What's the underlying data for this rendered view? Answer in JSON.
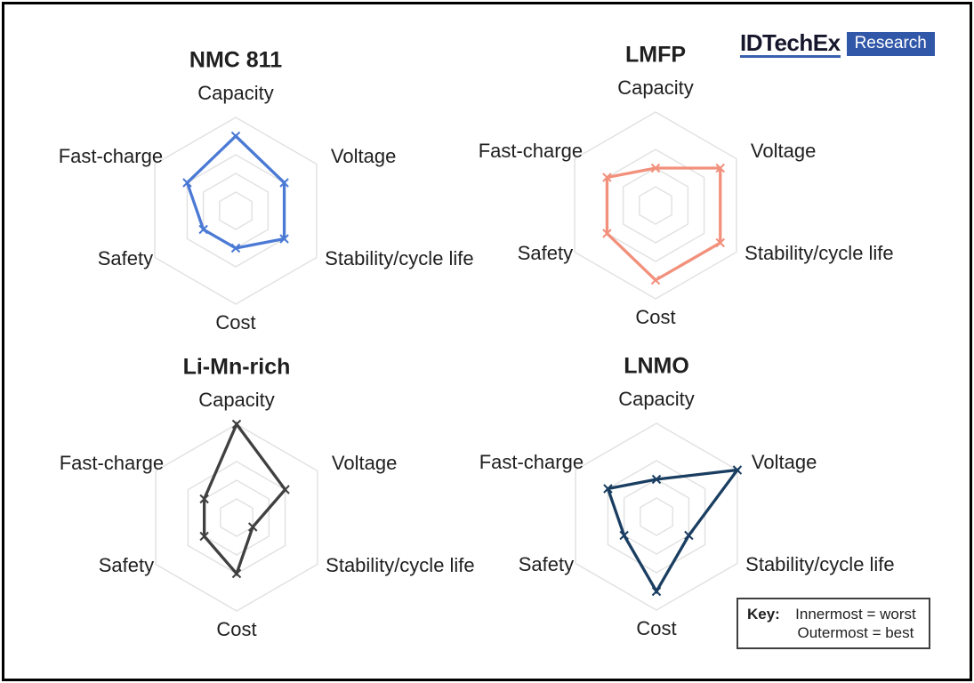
{
  "page": {
    "background": "#FFFFFF",
    "border_color": "#000000"
  },
  "logo": {
    "brand": "IDTechEx",
    "product": "Research",
    "brand_color": "#16162C",
    "underline_color": "#3A5FAE",
    "badge_bg": "#3157A8",
    "badge_text_color": "#FFFFFF"
  },
  "key": {
    "label": "Key:",
    "line1": "Innermost = worst",
    "line2": "Outermost = best"
  },
  "chart_data": [
    {
      "type": "radar",
      "title": "NMC 811",
      "axes": [
        "Capacity",
        "Voltage",
        "Stability/cycle life",
        "Cost",
        "Safety",
        "Fast-charge"
      ],
      "values": [
        4,
        3,
        3,
        2,
        2,
        3
      ],
      "color": "#4B7AD5",
      "grid_color": "#E2E2E2",
      "marker": "x",
      "scale": {
        "min": 0,
        "max": 5,
        "ring_values": [
          1,
          2,
          3,
          5
        ],
        "innermost": "worst",
        "outermost": "best"
      },
      "legend_position": "none",
      "grid": true
    },
    {
      "type": "radar",
      "title": "LMFP",
      "axes": [
        "Capacity",
        "Voltage",
        "Stability/cycle life",
        "Cost",
        "Safety",
        "Fast-charge"
      ],
      "values": [
        2,
        4,
        4,
        4,
        3,
        3
      ],
      "color": "#F2907C",
      "grid_color": "#E2E2E2",
      "marker": "x",
      "scale": {
        "min": 0,
        "max": 5,
        "ring_values": [
          1,
          2,
          3,
          5
        ],
        "innermost": "worst",
        "outermost": "best"
      },
      "legend_position": "none",
      "grid": true
    },
    {
      "type": "radar",
      "title": "Li-Mn-rich",
      "axes": [
        "Capacity",
        "Voltage",
        "Stability/cycle life",
        "Cost",
        "Safety",
        "Fast-charge"
      ],
      "values": [
        5,
        3,
        1,
        3,
        2,
        2
      ],
      "color": "#404040",
      "grid_color": "#E2E2E2",
      "marker": "x",
      "scale": {
        "min": 0,
        "max": 5,
        "ring_values": [
          1,
          2,
          3,
          5
        ],
        "innermost": "worst",
        "outermost": "best"
      },
      "legend_position": "none",
      "grid": true
    },
    {
      "type": "radar",
      "title": "LNMO",
      "axes": [
        "Capacity",
        "Voltage",
        "Stability/cycle life",
        "Cost",
        "Safety",
        "Fast-charge"
      ],
      "values": [
        2,
        5,
        2,
        4,
        2,
        3
      ],
      "color": "#1A3E61",
      "grid_color": "#E2E2E2",
      "marker": "x",
      "scale": {
        "min": 0,
        "max": 5,
        "ring_values": [
          1,
          2,
          3,
          5
        ],
        "innermost": "worst",
        "outermost": "best"
      },
      "legend_position": "none",
      "grid": true
    }
  ]
}
